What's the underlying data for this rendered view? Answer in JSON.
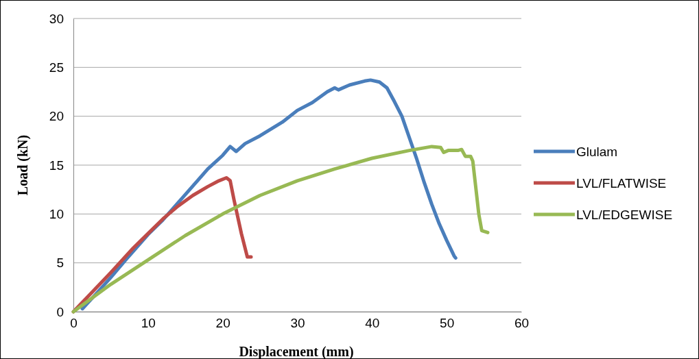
{
  "chart_data": {
    "type": "line",
    "xlabel": "Displacement (mm)",
    "ylabel": "Load (kN)",
    "xlim": [
      0,
      60
    ],
    "ylim": [
      0,
      30
    ],
    "xticks": [
      0,
      10,
      20,
      30,
      40,
      50,
      60
    ],
    "yticks": [
      0,
      5,
      10,
      15,
      20,
      25,
      30
    ],
    "grid": "y",
    "legend": "right",
    "marker": "none",
    "line_style": "solid",
    "series": [
      {
        "name": "Glulam",
        "color": "#4a7ebb",
        "x": [
          1.2,
          3,
          5,
          7,
          10,
          12,
          15,
          18,
          20,
          21,
          21.8,
          23,
          25,
          28,
          30,
          32,
          34,
          35,
          35.5,
          37,
          39,
          39.8,
          41,
          42,
          43,
          44,
          45,
          46,
          47,
          48,
          49,
          50,
          51,
          51.2
        ],
        "values": [
          0.3,
          1.8,
          3.5,
          5.3,
          7.9,
          9.4,
          12,
          14.6,
          16,
          16.9,
          16.4,
          17.2,
          18,
          19.4,
          20.6,
          21.4,
          22.5,
          22.9,
          22.7,
          23.2,
          23.6,
          23.7,
          23.5,
          22.9,
          21.5,
          20,
          17.8,
          15.6,
          13.2,
          11,
          9,
          7.3,
          5.7,
          5.5
        ]
      },
      {
        "name": "LVL/FLATWISE",
        "color": "#be4b48",
        "x": [
          0,
          2,
          5,
          8,
          10,
          12,
          14,
          16,
          18,
          19.5,
          20.5,
          21,
          21.5,
          22.5,
          23.3,
          23.8
        ],
        "values": [
          0,
          1.6,
          4,
          6.5,
          8,
          9.5,
          10.8,
          11.9,
          12.8,
          13.4,
          13.7,
          13.4,
          11.5,
          8,
          5.6,
          5.6
        ]
      },
      {
        "name": "LVL/EDGEWISE",
        "color": "#98b954",
        "x": [
          0,
          5,
          10,
          15,
          20,
          25,
          30,
          35,
          40,
          45,
          48,
          49.2,
          49.6,
          50.2,
          51.5,
          52,
          52.5,
          53.2,
          53.5,
          54.3,
          54.7,
          55.5
        ],
        "values": [
          0,
          2.8,
          5.3,
          7.8,
          10,
          11.9,
          13.4,
          14.6,
          15.7,
          16.5,
          16.9,
          16.8,
          16.3,
          16.5,
          16.5,
          16.6,
          15.9,
          15.9,
          15.4,
          10,
          8.3,
          8.1
        ]
      }
    ]
  }
}
